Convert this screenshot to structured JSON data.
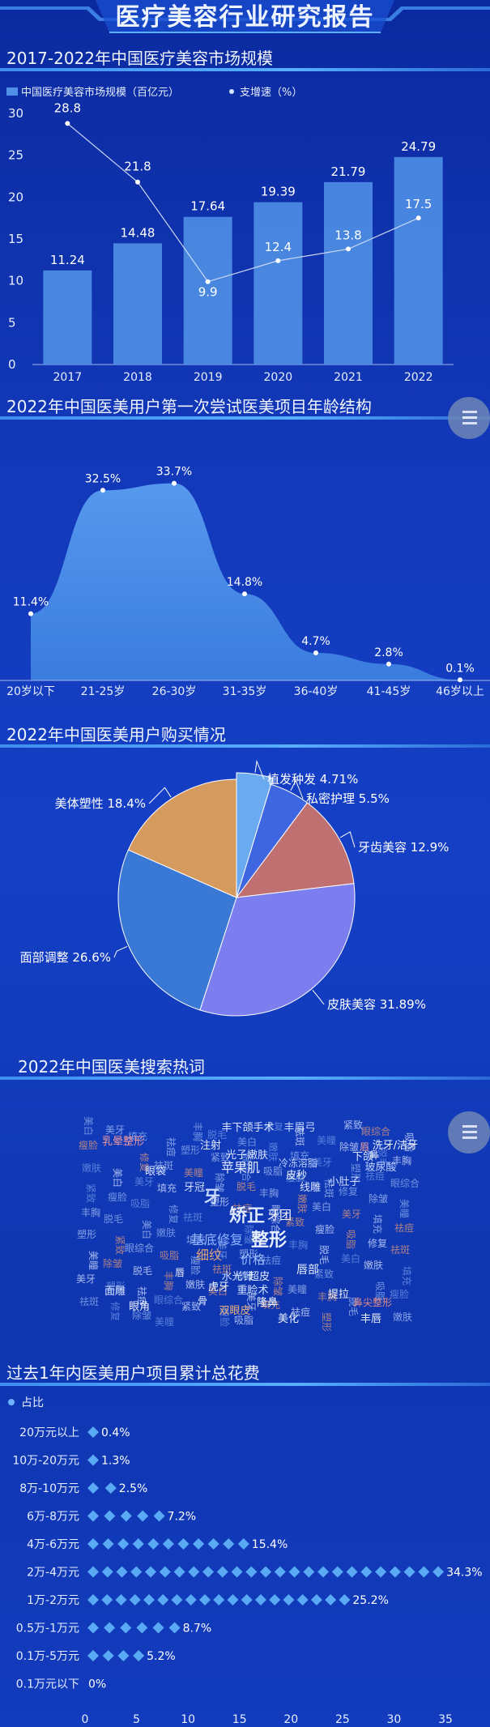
{
  "page": {
    "title": "医疗美容行业研究报告"
  },
  "sections": {
    "market": "2017-2022年中国医疗美容市场规模",
    "age": "2022年中国医美用户第一次尝试医美项目年龄结构",
    "purchase": "2022年中国医美用户购买情况",
    "search": "2022年中国医美搜索热词",
    "spend": "过去1年内医美用户项目累计总花费"
  },
  "icons": {
    "menu": "menu-list-icon"
  },
  "chart_data": [
    {
      "type": "bar",
      "title": "2017-2022年中国医疗美容市场规模",
      "categories": [
        "2017",
        "2018",
        "2019",
        "2020",
        "2021",
        "2022"
      ],
      "series": [
        {
          "name": "中国医疗美容市场规模（百亿元）",
          "kind": "bar",
          "values": [
            11.24,
            14.48,
            17.64,
            19.39,
            21.79,
            24.79
          ],
          "color": "#4f8fe6"
        },
        {
          "name": "支增速（%）",
          "kind": "line",
          "values": [
            28.8,
            21.8,
            9.9,
            12.4,
            13.8,
            17.5
          ],
          "color": "#d8e4ff"
        }
      ],
      "yticks": [
        "0",
        "5",
        "10",
        "15",
        "20",
        "25",
        "30"
      ],
      "ylim": [
        0,
        30
      ],
      "legend": "top-left"
    },
    {
      "type": "area",
      "title": "2022年中国医美用户第一次尝试医美项目年龄结构",
      "categories": [
        "20岁以下",
        "21-25岁",
        "26-30岁",
        "31-35岁",
        "36-40岁",
        "41-45岁",
        "46岁以上"
      ],
      "values": [
        11.4,
        32.5,
        33.7,
        14.8,
        4.7,
        2.8,
        0.1
      ],
      "labels": [
        "11.4%",
        "32.5%",
        "33.7%",
        "14.8%",
        "4.7%",
        "2.8%",
        "0.1%"
      ],
      "ylim": [
        0,
        36
      ]
    },
    {
      "type": "pie",
      "title": "2022年中国医美用户购买情况",
      "slices": [
        {
          "label": "植发种发 4.71%",
          "value": 4.71,
          "color": "#6aaaf0"
        },
        {
          "label": "私密护理 5.5%",
          "value": 5.5,
          "color": "#3d66e0"
        },
        {
          "label": "牙齿美容 12.9%",
          "value": 12.9,
          "color": "#c07070"
        },
        {
          "label": "皮肤美容 31.89%",
          "value": 31.89,
          "color": "#7c7ef0"
        },
        {
          "label": "面部调整 26.6%",
          "value": 26.6,
          "color": "#3a78d6"
        },
        {
          "label": "美体塑性 18.4%",
          "value": 18.4,
          "color": "#d49a5e"
        }
      ]
    },
    {
      "type": "table",
      "title": "2022年中国医美搜索热词",
      "words": [
        {
          "text": "矫正",
          "x": 305,
          "y": 1508,
          "size": 22,
          "color": "#dfe9ff"
        },
        {
          "text": "整形",
          "x": 332,
          "y": 1538,
          "size": 22,
          "color": "#e8f0ff"
        },
        {
          "text": "牙",
          "x": 262,
          "y": 1484,
          "size": 20,
          "color": "#c9d9ff"
        },
        {
          "text": "基底修复",
          "x": 268,
          "y": 1536,
          "size": 16,
          "color": "#8fb4ff"
        },
        {
          "text": "苹果肌",
          "x": 297,
          "y": 1447,
          "size": 16,
          "color": "#dfe7ff"
        },
        {
          "text": "细纹",
          "x": 258,
          "y": 1555,
          "size": 16,
          "color": "#e0a37a"
        },
        {
          "text": "价格",
          "x": 312,
          "y": 1560,
          "size": 15,
          "color": "#9ec0ff"
        },
        {
          "text": "牙团",
          "x": 345,
          "y": 1505,
          "size": 15,
          "color": "#ffffff"
        },
        {
          "text": "水光针",
          "x": 293,
          "y": 1580,
          "size": 13,
          "color": "#cfe0ff"
        },
        {
          "text": "乳晕整形",
          "x": 152,
          "y": 1413,
          "size": 13,
          "color": "#f09aa0"
        },
        {
          "text": "丰下颌手术",
          "x": 306,
          "y": 1396,
          "size": 13,
          "color": "#dbe6ff"
        },
        {
          "text": "丰眉弓",
          "x": 370,
          "y": 1396,
          "size": 13,
          "color": "#c5d6ff"
        },
        {
          "text": "洗牙/洁牙",
          "x": 488,
          "y": 1418,
          "size": 13,
          "color": "#f0f4ff"
        },
        {
          "text": "注射",
          "x": 260,
          "y": 1418,
          "size": 13,
          "color": "#e3ecff"
        },
        {
          "text": "光子嫩肤",
          "x": 305,
          "y": 1430,
          "size": 13,
          "color": "#d9e4ff"
        },
        {
          "text": "冷冻溶脂",
          "x": 368,
          "y": 1440,
          "size": 12,
          "color": "#bcd0ff"
        },
        {
          "text": "线雕",
          "x": 383,
          "y": 1470,
          "size": 13,
          "color": "#d8e4ff"
        },
        {
          "text": "皮秒",
          "x": 366,
          "y": 1455,
          "size": 13,
          "color": "#e5edff"
        },
        {
          "text": "小肚子",
          "x": 425,
          "y": 1463,
          "size": 13,
          "color": "#cddcff"
        },
        {
          "text": "隆鼻",
          "x": 330,
          "y": 1612,
          "size": 13,
          "color": "#f2f6ff"
        },
        {
          "text": "眼角",
          "x": 172,
          "y": 1617,
          "size": 13,
          "color": "#e8efff"
        },
        {
          "text": "双眼皮",
          "x": 290,
          "y": 1622,
          "size": 13,
          "color": "#e8b27e"
        },
        {
          "text": "美化",
          "x": 356,
          "y": 1632,
          "size": 13,
          "color": "#e8efff"
        },
        {
          "text": "提拉",
          "x": 418,
          "y": 1602,
          "size": 13,
          "color": "#f0f4ff"
        },
        {
          "text": "丰唇",
          "x": 458,
          "y": 1632,
          "size": 13,
          "color": "#e8efff"
        },
        {
          "text": "鼻尖整形",
          "x": 460,
          "y": 1612,
          "size": 12,
          "color": "#e08a8a"
        },
        {
          "text": "骨",
          "x": 250,
          "y": 1610,
          "size": 12,
          "color": "#e5ecff"
        },
        {
          "text": "唇部",
          "x": 380,
          "y": 1572,
          "size": 14,
          "color": "#e5ecff"
        },
        {
          "text": "超皮",
          "x": 320,
          "y": 1580,
          "size": 13,
          "color": "#e5ecff"
        },
        {
          "text": "重睑术",
          "x": 312,
          "y": 1597,
          "size": 13,
          "color": "#cfe0ff"
        },
        {
          "text": "虎牙",
          "x": 270,
          "y": 1593,
          "size": 13,
          "color": "#f4f8ff"
        },
        {
          "text": "玻尿酸",
          "x": 470,
          "y": 1445,
          "size": 13,
          "color": "#bcd0ff"
        },
        {
          "text": "下颌",
          "x": 448,
          "y": 1432,
          "size": 13,
          "color": "#dce7ff"
        },
        {
          "text": "眉",
          "x": 450,
          "y": 1420,
          "size": 12,
          "color": "#f0a0a0"
        },
        {
          "text": "鼻",
          "x": 462,
          "y": 1430,
          "size": 12,
          "color": "#e8efff"
        },
        {
          "text": "面雕",
          "x": 142,
          "y": 1598,
          "size": 13,
          "color": "#d8e4ff"
        },
        {
          "text": "眼袋",
          "x": 192,
          "y": 1450,
          "size": 13,
          "color": "#dce7ff"
        },
        {
          "text": "牙冠",
          "x": 240,
          "y": 1470,
          "size": 13,
          "color": "#cfdcff"
        },
        {
          "text": "唇",
          "x": 222,
          "y": 1575,
          "size": 12,
          "color": "#f0f4ff"
        }
      ]
    },
    {
      "type": "scatter",
      "title": "过去1年内医美用户项目累计总花费",
      "legend_label": "占比",
      "categories": [
        "20万元以上",
        "10万-20万元",
        "8万-10万元",
        "6万-8万元",
        "4万-6万元",
        "2万-4万元",
        "1万-2万元",
        "0.5万-1万元",
        "0.1万-5万元",
        "0.1万元以下"
      ],
      "values": [
        0.4,
        1.3,
        2.5,
        7.2,
        15.4,
        34.3,
        25.2,
        8.7,
        5.2,
        0
      ],
      "labels": [
        "0.4%",
        "1.3%",
        "2.5%",
        "7.2%",
        "15.4%",
        "34.3%",
        "25.2%",
        "8.7%",
        "5.2%",
        "0%"
      ],
      "xticks": [
        "0",
        "5",
        "10",
        "15",
        "20",
        "25",
        "30",
        "35"
      ],
      "xlim": [
        0,
        35
      ]
    }
  ]
}
